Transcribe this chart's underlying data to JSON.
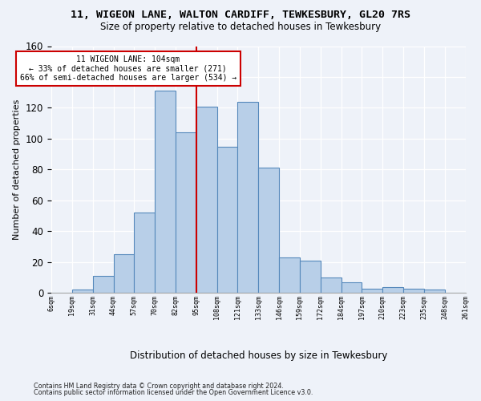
{
  "title1": "11, WIGEON LANE, WALTON CARDIFF, TEWKESBURY, GL20 7RS",
  "title2": "Size of property relative to detached houses in Tewkesbury",
  "xlabel": "Distribution of detached houses by size in Tewkesbury",
  "ylabel": "Number of detached properties",
  "bar_heights": [
    0,
    2,
    11,
    25,
    52,
    131,
    104,
    121,
    95,
    124,
    81,
    23,
    21,
    10,
    7,
    3,
    4,
    3,
    2,
    0
  ],
  "tick_labels": [
    "6sqm",
    "19sqm",
    "31sqm",
    "44sqm",
    "57sqm",
    "70sqm",
    "82sqm",
    "95sqm",
    "108sqm",
    "121sqm",
    "133sqm",
    "146sqm",
    "159sqm",
    "172sqm",
    "184sqm",
    "197sqm",
    "210sqm",
    "223sqm",
    "235sqm",
    "248sqm",
    "261sqm"
  ],
  "bar_color": "#b8cfe8",
  "bar_edge_color": "#5588bb",
  "vline_pos": 6.5,
  "vline_color": "#cc0000",
  "annotation_line1": "11 WIGEON LANE: 104sqm",
  "annotation_line2": "← 33% of detached houses are smaller (271)",
  "annotation_line3": "66% of semi-detached houses are larger (534) →",
  "ylim_max": 160,
  "yticks": [
    0,
    20,
    40,
    60,
    80,
    100,
    120,
    140,
    160
  ],
  "bg_color": "#eef2f9",
  "footer1": "Contains HM Land Registry data © Crown copyright and database right 2024.",
  "footer2": "Contains public sector information licensed under the Open Government Licence v3.0."
}
